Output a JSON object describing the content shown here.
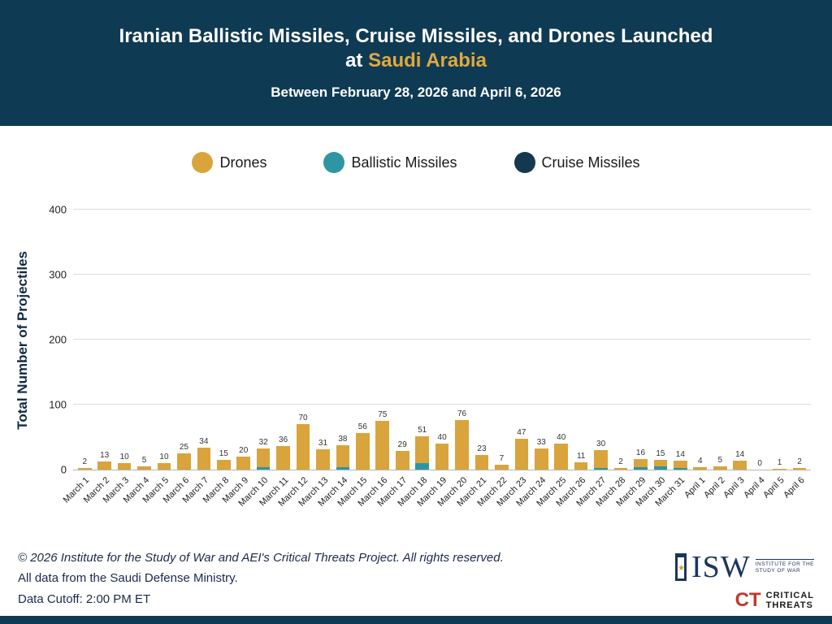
{
  "header": {
    "title_line1": "Iranian Ballistic Missiles, Cruise Missiles, and Drones Launched",
    "title_line2_prefix": "at ",
    "title_highlight": "Saudi Arabia",
    "subtitle": "Between February 28, 2026 and April 6, 2026"
  },
  "legend": [
    {
      "label": "Drones",
      "color": "#D9A43C"
    },
    {
      "label": "Ballistic Missiles",
      "color": "#2E96A3"
    },
    {
      "label": "Cruise Missiles",
      "color": "#12394F"
    }
  ],
  "chart_data": {
    "type": "bar",
    "stacked": true,
    "title": "Iranian Ballistic Missiles, Cruise Missiles, and Drones Launched at Saudi Arabia",
    "subtitle": "Between February 28, 2026 and April 6, 2026",
    "ylabel": "Total Number of Projectiles",
    "xlabel": "",
    "ylim": [
      0,
      400
    ],
    "yticks": [
      0,
      100,
      200,
      300,
      400
    ],
    "grid": true,
    "legend_position": "top",
    "categories": [
      "March 1",
      "March 2",
      "March 3",
      "March 4",
      "March 5",
      "March 6",
      "March 7",
      "March 8",
      "March 9",
      "March 10",
      "March 11",
      "March 12",
      "March 13",
      "March 14",
      "March 15",
      "March 16",
      "March 17",
      "March 18",
      "March 19",
      "March 20",
      "March 21",
      "March 22",
      "March 23",
      "March 24",
      "March 25",
      "March 26",
      "March 27",
      "March 28",
      "March 29",
      "March 30",
      "March 31",
      "April 1",
      "April 2",
      "April 3",
      "April 4",
      "April 5",
      "April 6"
    ],
    "totals": [
      2,
      13,
      10,
      5,
      10,
      25,
      34,
      15,
      20,
      32,
      36,
      70,
      31,
      38,
      56,
      75,
      29,
      51,
      40,
      76,
      23,
      7,
      47,
      33,
      40,
      11,
      30,
      2,
      16,
      15,
      14,
      4,
      5,
      14,
      0,
      1,
      2
    ],
    "series": [
      {
        "name": "Drones",
        "color": "#D9A43C",
        "values": [
          2,
          13,
          10,
          5,
          10,
          25,
          34,
          15,
          20,
          28,
          36,
          70,
          31,
          34,
          56,
          75,
          29,
          41,
          40,
          76,
          23,
          7,
          47,
          33,
          40,
          11,
          27,
          2,
          12,
          10,
          12,
          4,
          5,
          14,
          0,
          1,
          2
        ]
      },
      {
        "name": "Ballistic Missiles",
        "color": "#2E96A3",
        "values": [
          0,
          0,
          0,
          0,
          0,
          0,
          0,
          0,
          0,
          4,
          0,
          0,
          0,
          4,
          0,
          0,
          0,
          10,
          0,
          0,
          0,
          0,
          0,
          0,
          0,
          0,
          3,
          0,
          4,
          5,
          2,
          0,
          0,
          0,
          0,
          0,
          0
        ]
      },
      {
        "name": "Cruise Missiles",
        "color": "#12394F",
        "values": [
          0,
          0,
          0,
          0,
          0,
          0,
          0,
          0,
          0,
          0,
          0,
          0,
          0,
          0,
          0,
          0,
          0,
          0,
          0,
          0,
          0,
          0,
          0,
          0,
          0,
          0,
          0,
          0,
          0,
          0,
          0,
          0,
          0,
          0,
          0,
          0,
          0
        ]
      }
    ]
  },
  "footer": {
    "line1": "© 2026 Institute for the Study of War and AEI's Critical Threats Project. All rights reserved.",
    "line2": "All data from the Saudi Defense Ministry.",
    "line3": "Data Cutoff: 2:00 PM ET"
  },
  "logos": {
    "isw_text": "ISW",
    "isw_subtext1": "INSTITUTE FOR THE",
    "isw_subtext2": "STUDY OF WAR",
    "ct_initials": "CT",
    "ct_line1": "CRITICAL",
    "ct_line2": "THREATS"
  }
}
